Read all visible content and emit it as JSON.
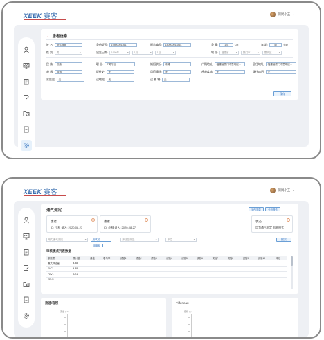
{
  "app": {
    "logo_text": "XEEK",
    "logo_cn": "赛客",
    "user_name": "测试小王"
  },
  "sidebar_icons": [
    "patient-icon",
    "monitor-icon",
    "clipboard-icon",
    "edit-icon",
    "folder-clock-icon",
    "document-icon",
    "settings-icon"
  ],
  "screen1": {
    "title": "患者信息",
    "row1": {
      "name_label": "姓 名:",
      "name_value": "测试数据",
      "idcard_label": "身份证号:",
      "idcard_value": "19800001861",
      "phone_label": "报告编号:",
      "phone_value": "180000018461",
      "height_label": "身 高:",
      "height_value": "178",
      "height_unit": "CM",
      "age_label": "年 龄:",
      "age_value": "57",
      "age_unit": "岁龄"
    },
    "row2": {
      "gender_label": "性 别:",
      "gender_value": "男",
      "birth_label": "出生日期:",
      "birth_year": "1990年",
      "birth_month": "1月",
      "birth_day": "1日",
      "region_label": "地 址:",
      "region_province": "福建省",
      "region_city": "厦门市",
      "region_district": "思明区"
    },
    "row3": {
      "f1_label": "民 族:",
      "f1_value": "汉族",
      "f2_label": "职 业:",
      "f2_value": "IT类专业",
      "f3_label": "婚姻状况:",
      "f3_value": "未婚",
      "f4_label": "户籍地址:",
      "f4_value": "福建省厦门市思明区...",
      "f5_label": "居住地址:",
      "f5_value": "福建省厦门市思明区..."
    },
    "row4": {
      "f1_label": "吸 烟:",
      "f1_value": "吸烟",
      "f2_label": "既往史:",
      "f2_value": "无",
      "f3_label": "用药情况:",
      "f3_value": "无",
      "f4_label": "呼吸疾病:",
      "f4_value": "无",
      "f5_label": "既往病历:",
      "f5_value": "无"
    },
    "row5": {
      "f1_label": "家族史:",
      "f1_value": "无",
      "f2_label": "过敏史:",
      "f2_value": "无",
      "f3_label": "过 敏 物:",
      "f3_value": "无"
    },
    "save_label": "保存"
  },
  "screen2": {
    "title": "通气测定",
    "top_btn1": "通气测量",
    "top_btn2": "分析报告",
    "cards": [
      {
        "title": "患者",
        "sub": "ID: 小林   录入: 2020-08-27"
      },
      {
        "title": "患者",
        "sub": "ID: 小林   录入: 2020-08-27"
      },
      {
        "title": "状态",
        "sub": "用力通气测定       机器模式"
      }
    ],
    "filters": [
      "用力通气测定",
      "用氧前",
      "肺活量测量",
      "单位"
    ],
    "filter_search": "搜索",
    "chip": "用氧前",
    "table_title": "审核模式列表数据",
    "table_headers": [
      "参数项",
      "预计值",
      "最佳",
      "看与率",
      "试验1",
      "试验2",
      "试验3",
      "试验4",
      "试验5",
      "试验6",
      "试验7",
      "试验8",
      "试验9",
      "试验10",
      "评分"
    ],
    "table_rows": [
      [
        "最大肺活量",
        "4.88",
        "",
        "",
        "",
        "",
        "",
        "",
        "",
        "",
        "",
        "",
        "",
        "",
        ""
      ],
      [
        "FVC",
        "4.88",
        "",
        "",
        "",
        "",
        "",
        "",
        "",
        "",
        "",
        "",
        "",
        "",
        ""
      ],
      [
        "FEV1",
        "3.74",
        "",
        "",
        "",
        "",
        "",
        "",
        "",
        "",
        "",
        "",
        "",
        "",
        ""
      ],
      [
        "FEV3",
        "",
        "",
        "",
        "",
        "",
        "",
        "",
        "",
        "",
        "",
        "",
        "",
        "",
        ""
      ]
    ],
    "chart_left_title": "流速/容积",
    "chart_right_title": "Tiffeneau",
    "chart_left_ylabel": "流速 (L/s)",
    "chart_right_ylabel": "容积 (L)"
  }
}
